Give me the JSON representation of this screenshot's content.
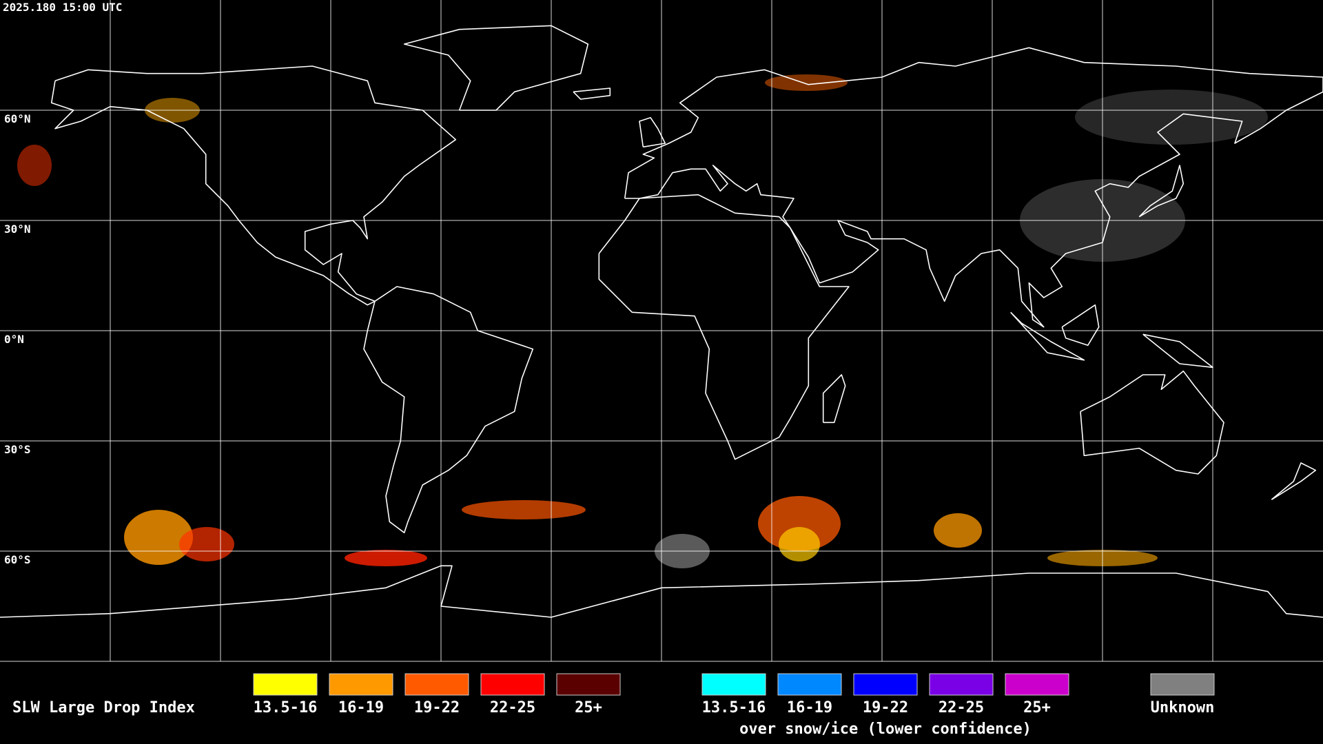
{
  "header": {
    "timestamp": "2025.180 15:00 UTC"
  },
  "map": {
    "latitude_labels": [
      "60°N",
      "30°N",
      "0°N",
      "30°S",
      "60°S"
    ]
  },
  "legend": {
    "title": "SLW Large Drop Index",
    "groups": [
      {
        "items": [
          {
            "label": "13.5-16",
            "color": "#ffff00"
          },
          {
            "label": "16-19",
            "color": "#ff9900"
          },
          {
            "label": "19-22",
            "color": "#ff5a00"
          },
          {
            "label": "22-25",
            "color": "#ff0000"
          },
          {
            "label": "25+",
            "color": "#5a0000"
          }
        ]
      },
      {
        "items": [
          {
            "label": "13.5-16",
            "color": "#00ffff"
          },
          {
            "label": "16-19",
            "color": "#0088ff"
          },
          {
            "label": "19-22",
            "color": "#0000ff"
          },
          {
            "label": "22-25",
            "color": "#7a00e6"
          },
          {
            "label": "25+",
            "color": "#cc00cc"
          }
        ],
        "caption": "over snow/ice (lower confidence)"
      },
      {
        "items": [
          {
            "label": "Unknown",
            "color": "#808080"
          }
        ]
      }
    ]
  }
}
